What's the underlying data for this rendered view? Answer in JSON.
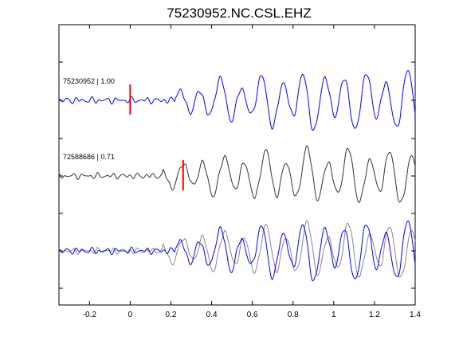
{
  "chart_data": {
    "type": "line",
    "title": "75230952.NC.CSL.EHZ",
    "xlabel": "",
    "ylabel": "",
    "xlim": [
      -0.35,
      1.4
    ],
    "xticks": [
      -0.2,
      0,
      0.2,
      0.4,
      0.6,
      0.8,
      1,
      1.2,
      1.4
    ],
    "xtick_labels": [
      "-0.2",
      "0",
      "0.2",
      "0.4",
      "0.6",
      "0.8",
      "1",
      "1.2",
      "1.4"
    ],
    "grid": false,
    "legend": "none",
    "traces": [
      {
        "label": "75230952 | 1.00",
        "color": "#0000ff",
        "pick_time": 0.0,
        "pick_color": "#ff0000"
      },
      {
        "label": "72588686 | 0.71",
        "color": "#333333",
        "pick_time": 0.26,
        "pick_color": "#ff0000"
      },
      {
        "label": "",
        "overlay": true
      }
    ]
  },
  "colors": {
    "primary": "#0000ff",
    "secondary": "#333333",
    "overlay_secondary": "#888888",
    "pick": "#ff0000"
  }
}
